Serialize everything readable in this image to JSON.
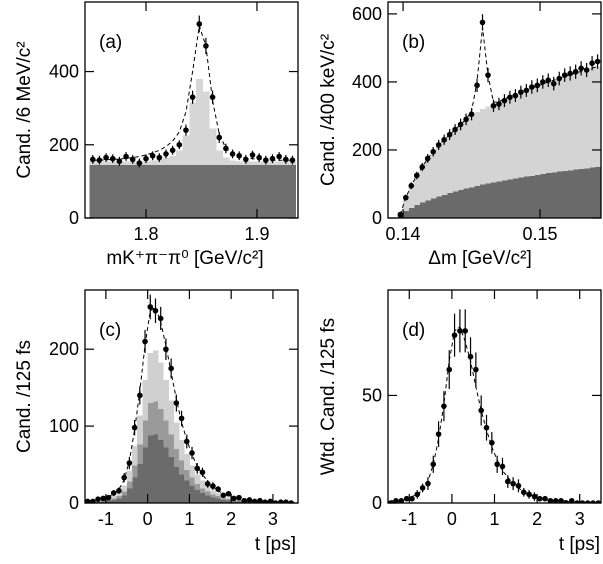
{
  "chart_data": [
    {
      "type": "scatter",
      "panel_label": "(a)",
      "y_label": "Cand. /6 MeV/c²",
      "x_label": "mK⁺π⁻π⁰ [GeV/c²]",
      "xlim": [
        1.745,
        1.937
      ],
      "ylim": [
        0,
        590
      ],
      "xticks": [
        1.8,
        1.9
      ],
      "yticks": [
        0,
        200,
        400
      ],
      "x": [
        1.752,
        1.758,
        1.764,
        1.77,
        1.776,
        1.782,
        1.788,
        1.794,
        1.8,
        1.806,
        1.812,
        1.818,
        1.824,
        1.83,
        1.836,
        1.842,
        1.848,
        1.854,
        1.86,
        1.866,
        1.872,
        1.878,
        1.884,
        1.89,
        1.896,
        1.902,
        1.908,
        1.914,
        1.92,
        1.926,
        1.932
      ],
      "values": [
        160,
        158,
        165,
        162,
        155,
        168,
        160,
        150,
        162,
        170,
        165,
        175,
        185,
        200,
        240,
        330,
        530,
        470,
        330,
        220,
        190,
        175,
        170,
        160,
        172,
        165,
        158,
        162,
        168,
        160,
        158
      ],
      "errors": [
        12,
        12,
        12,
        12,
        12,
        12,
        12,
        12,
        12,
        12,
        12,
        12,
        12,
        12,
        15,
        18,
        23,
        22,
        18,
        15,
        13,
        12,
        12,
        12,
        12,
        12,
        12,
        12,
        12,
        12,
        12
      ],
      "fit": [
        158,
        158,
        159,
        160,
        161,
        163,
        165,
        168,
        172,
        178,
        185,
        195,
        210,
        235,
        290,
        400,
        525,
        470,
        320,
        230,
        190,
        175,
        168,
        164,
        162,
        160,
        159,
        158,
        158,
        158,
        158
      ],
      "stack": [
        {
          "color": "#6e6e6e",
          "values": [
            145,
            145,
            145,
            145,
            145,
            145,
            145,
            145,
            145,
            145,
            145,
            145,
            145,
            145,
            145,
            145,
            145,
            145,
            145,
            145,
            145,
            145,
            145,
            145,
            145,
            145,
            145,
            145,
            145,
            145,
            145
          ]
        },
        {
          "color": "#d6d6d6",
          "values": [
            10,
            10,
            10,
            10,
            10,
            10,
            10,
            10,
            10,
            12,
            15,
            20,
            25,
            40,
            80,
            170,
            235,
            200,
            100,
            40,
            20,
            12,
            10,
            10,
            10,
            10,
            10,
            10,
            10,
            10,
            10
          ]
        }
      ]
    },
    {
      "type": "scatter",
      "panel_label": "(b)",
      "y_label": "Cand. /400 keV/c²",
      "x_label": "Δm [GeV/c²]",
      "xlim": [
        0.1389,
        0.15445
      ],
      "ylim": [
        0,
        635
      ],
      "xticks": [
        0.14,
        0.15
      ],
      "yticks": [
        0,
        200,
        400,
        600
      ],
      "x": [
        0.1398,
        0.1402,
        0.1406,
        0.141,
        0.1414,
        0.1418,
        0.1422,
        0.1426,
        0.143,
        0.1434,
        0.1438,
        0.1442,
        0.1446,
        0.145,
        0.1454,
        0.1458,
        0.1462,
        0.1466,
        0.147,
        0.1474,
        0.1478,
        0.1482,
        0.1486,
        0.149,
        0.1494,
        0.1498,
        0.1502,
        0.1506,
        0.151,
        0.1514,
        0.1518,
        0.1522,
        0.1526,
        0.153,
        0.1534,
        0.1538,
        0.1542
      ],
      "values": [
        10,
        60,
        95,
        125,
        150,
        175,
        195,
        215,
        230,
        245,
        260,
        275,
        290,
        305,
        390,
        575,
        420,
        330,
        335,
        345,
        355,
        360,
        370,
        375,
        385,
        390,
        400,
        405,
        395,
        410,
        420,
        425,
        430,
        440,
        435,
        455,
        460
      ],
      "errors": [
        3,
        8,
        10,
        11,
        12,
        13,
        14,
        15,
        15,
        16,
        16,
        17,
        17,
        18,
        20,
        24,
        21,
        18,
        18,
        19,
        19,
        19,
        19,
        19,
        20,
        20,
        20,
        20,
        20,
        20,
        20,
        21,
        21,
        21,
        21,
        21,
        21
      ],
      "fit": [
        10,
        60,
        95,
        125,
        150,
        175,
        195,
        215,
        230,
        245,
        260,
        275,
        290,
        315,
        400,
        560,
        420,
        340,
        342,
        350,
        357,
        364,
        370,
        376,
        382,
        388,
        394,
        400,
        405,
        410,
        416,
        421,
        426,
        431,
        436,
        441,
        445
      ],
      "stack": [
        {
          "color": "#6a6a6a",
          "values": [
            5,
            20,
            30,
            38,
            45,
            52,
            58,
            63,
            68,
            73,
            78,
            82,
            86,
            90,
            94,
            98,
            101,
            104,
            107,
            110,
            113,
            116,
            119,
            122,
            124,
            127,
            129,
            132,
            134,
            136,
            138,
            140,
            142,
            144,
            146,
            148,
            150
          ]
        },
        {
          "color": "#d4d4d4",
          "values": [
            5,
            40,
            65,
            87,
            105,
            123,
            137,
            152,
            162,
            172,
            182,
            193,
            204,
            215,
            218,
            222,
            227,
            231,
            235,
            240,
            244,
            248,
            251,
            254,
            258,
            261,
            265,
            268,
            271,
            274,
            278,
            281,
            284,
            287,
            290,
            293,
            295
          ]
        }
      ]
    },
    {
      "type": "scatter",
      "panel_label": "(c)",
      "y_label": "Cand. /125 fs",
      "x_label": "t [ps]",
      "xlim": [
        -1.5,
        3.6
      ],
      "ylim": [
        0,
        277
      ],
      "xticks": [
        -1,
        0,
        1,
        2,
        3
      ],
      "yticks": [
        0,
        100,
        200
      ],
      "x": [
        -1.4375,
        -1.3125,
        -1.1875,
        -1.0625,
        -0.9375,
        -0.8125,
        -0.6875,
        -0.5625,
        -0.4375,
        -0.3125,
        -0.1875,
        -0.0625,
        0.0625,
        0.1875,
        0.3125,
        0.4375,
        0.5625,
        0.6875,
        0.8125,
        0.9375,
        1.0625,
        1.1875,
        1.3125,
        1.4375,
        1.5625,
        1.6875,
        1.8125,
        1.9375,
        2.0625,
        2.1875,
        2.3125,
        2.4375,
        2.5625,
        2.6875,
        2.8125,
        2.9375,
        3.0625,
        3.1875,
        3.3125,
        3.4375
      ],
      "values": [
        2,
        2,
        5,
        6,
        7,
        13,
        16,
        33,
        52,
        98,
        140,
        210,
        255,
        250,
        240,
        200,
        175,
        130,
        110,
        80,
        65,
        45,
        40,
        25,
        22,
        18,
        10,
        12,
        6,
        7,
        3,
        4,
        2,
        3,
        1,
        2,
        0,
        1,
        1,
        0
      ],
      "errors": [
        2,
        2,
        3,
        3,
        3,
        4,
        4,
        6,
        8,
        10,
        12,
        15,
        16,
        16,
        15,
        14,
        13,
        11,
        10,
        9,
        8,
        7,
        6,
        5,
        5,
        4,
        3,
        3,
        3,
        3,
        2,
        2,
        2,
        2,
        1,
        1,
        1,
        1,
        1,
        1
      ],
      "fit": [
        2,
        3,
        4,
        6,
        8,
        12,
        18,
        30,
        55,
        95,
        145,
        205,
        250,
        255,
        235,
        205,
        170,
        135,
        105,
        82,
        63,
        48,
        37,
        28,
        21,
        16,
        12,
        9,
        7,
        6,
        4,
        3,
        3,
        2,
        2,
        1,
        1,
        1,
        1,
        0
      ],
      "stack": [
        {
          "color": "#6b6b6b",
          "values": [
            1,
            1,
            1,
            2,
            3,
            4,
            6,
            10,
            19,
            33,
            51,
            72,
            88,
            89,
            82,
            72,
            60,
            47,
            37,
            29,
            22,
            17,
            13,
            10,
            7,
            6,
            4,
            3,
            2,
            2,
            1,
            1,
            1,
            1,
            1,
            0,
            0,
            0,
            0,
            0
          ]
        },
        {
          "color": "#9a9a9a",
          "values": [
            0,
            1,
            1,
            1,
            1,
            2,
            3,
            5,
            9,
            16,
            25,
            35,
            42,
            43,
            40,
            35,
            29,
            23,
            18,
            14,
            11,
            8,
            6,
            5,
            4,
            3,
            2,
            2,
            1,
            1,
            1,
            1,
            0,
            0,
            0,
            0,
            0,
            0,
            0,
            0
          ]
        },
        {
          "color": "#d0d0d0",
          "values": [
            0,
            0,
            1,
            1,
            2,
            3,
            5,
            8,
            14,
            25,
            38,
            53,
            65,
            66,
            61,
            53,
            44,
            35,
            27,
            21,
            16,
            12,
            10,
            7,
            5,
            4,
            3,
            2,
            2,
            1,
            1,
            0,
            1,
            0,
            0,
            0,
            0,
            0,
            0,
            0
          ]
        }
      ]
    },
    {
      "type": "scatter",
      "panel_label": "(d)",
      "y_label": "Wtd. Cand. /125 fs",
      "x_label": "t [ps]",
      "xlim": [
        -1.5,
        3.5
      ],
      "ylim": [
        0,
        99
      ],
      "xticks": [
        -1,
        0,
        1,
        2,
        3
      ],
      "yticks": [
        0,
        50
      ],
      "x": [
        -1.4375,
        -1.3125,
        -1.1875,
        -1.0625,
        -0.9375,
        -0.8125,
        -0.6875,
        -0.5625,
        -0.4375,
        -0.3125,
        -0.1875,
        -0.0625,
        0.0625,
        0.1875,
        0.3125,
        0.4375,
        0.5625,
        0.6875,
        0.8125,
        0.9375,
        1.0625,
        1.1875,
        1.3125,
        1.4375,
        1.5625,
        1.6875,
        1.8125,
        1.9375,
        2.0625,
        2.1875,
        2.3125,
        2.4375,
        2.5625,
        2.6875,
        2.8125,
        2.9375,
        3.0625,
        3.1875,
        3.3125,
        3.4375
      ],
      "values": [
        0,
        1,
        1,
        2,
        2,
        4,
        7,
        9,
        18,
        32,
        45,
        62,
        78,
        80,
        80,
        68,
        62,
        43,
        35,
        28,
        18,
        17,
        10,
        9,
        8,
        5,
        4,
        3,
        2,
        2,
        1,
        1,
        1,
        0,
        1,
        0,
        0,
        0,
        0,
        0
      ],
      "errors": [
        1,
        1,
        1,
        1,
        1,
        2,
        2,
        3,
        4,
        6,
        7,
        9,
        10,
        10,
        10,
        9,
        8,
        7,
        6,
        5,
        4,
        4,
        3,
        3,
        3,
        2,
        2,
        2,
        1,
        1,
        1,
        1,
        1,
        1,
        1,
        1,
        1,
        1,
        1,
        1
      ],
      "fit": [
        1,
        1,
        1,
        2,
        3,
        4,
        6,
        10,
        18,
        30,
        46,
        66,
        80,
        82,
        75,
        66,
        54,
        43,
        34,
        26,
        20,
        15,
        12,
        9,
        7,
        5,
        4,
        3,
        2,
        2,
        1,
        1,
        1,
        1,
        1,
        0,
        0,
        0,
        0,
        0
      ],
      "stack": []
    }
  ]
}
